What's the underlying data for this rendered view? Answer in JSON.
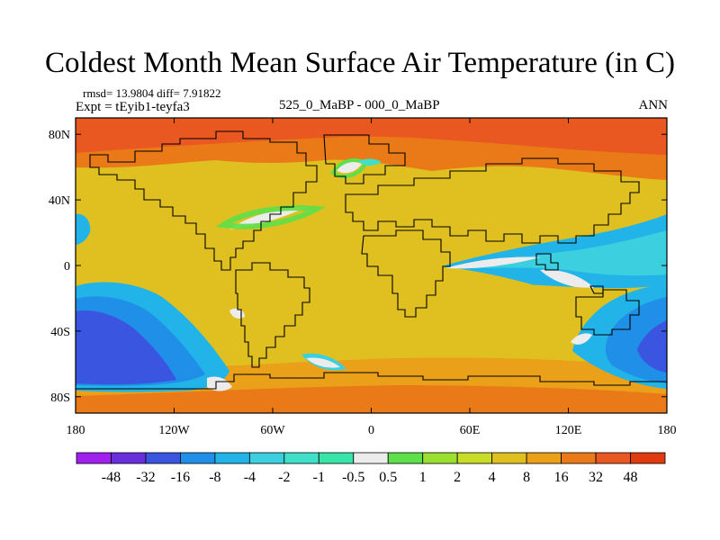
{
  "chart_data": {
    "type": "heatmap",
    "title": "Coldest Month Mean Surface Air Temperature (in C)",
    "stats": "rmsd= 13.9804 diff= 7.91822",
    "experiment": "Expt = tEyib1-teyfa3",
    "period": "525_0_MaBP - 000_0_MaBP",
    "season": "ANN",
    "x_ticks": [
      "180",
      "120W",
      "60W",
      "0",
      "60E",
      "120E",
      "180"
    ],
    "x_tick_values": [
      -180,
      -120,
      -60,
      0,
      60,
      120,
      180
    ],
    "y_ticks": [
      "80N",
      "40N",
      "0",
      "40S",
      "80S"
    ],
    "y_tick_values": [
      80,
      40,
      0,
      -40,
      -80
    ],
    "xlim": [
      -180,
      180
    ],
    "ylim": [
      -90,
      90
    ],
    "colorbar": {
      "labels": [
        "-48",
        "-32",
        "-16",
        "-8",
        "-4",
        "-2",
        "-1",
        "-0.5",
        "0.5",
        "1",
        "2",
        "4",
        "8",
        "16",
        "32",
        "48"
      ],
      "colors": [
        "#a020f0",
        "#6a2fdd",
        "#3a55e0",
        "#1f8fe8",
        "#22b4e8",
        "#3ccfe0",
        "#40e0c8",
        "#38e5a8",
        "#ececec",
        "#5de04a",
        "#9be030",
        "#c8dc28",
        "#e0c020",
        "#eaa018",
        "#ea7a18",
        "#e85820",
        "#e03a10"
      ]
    }
  }
}
